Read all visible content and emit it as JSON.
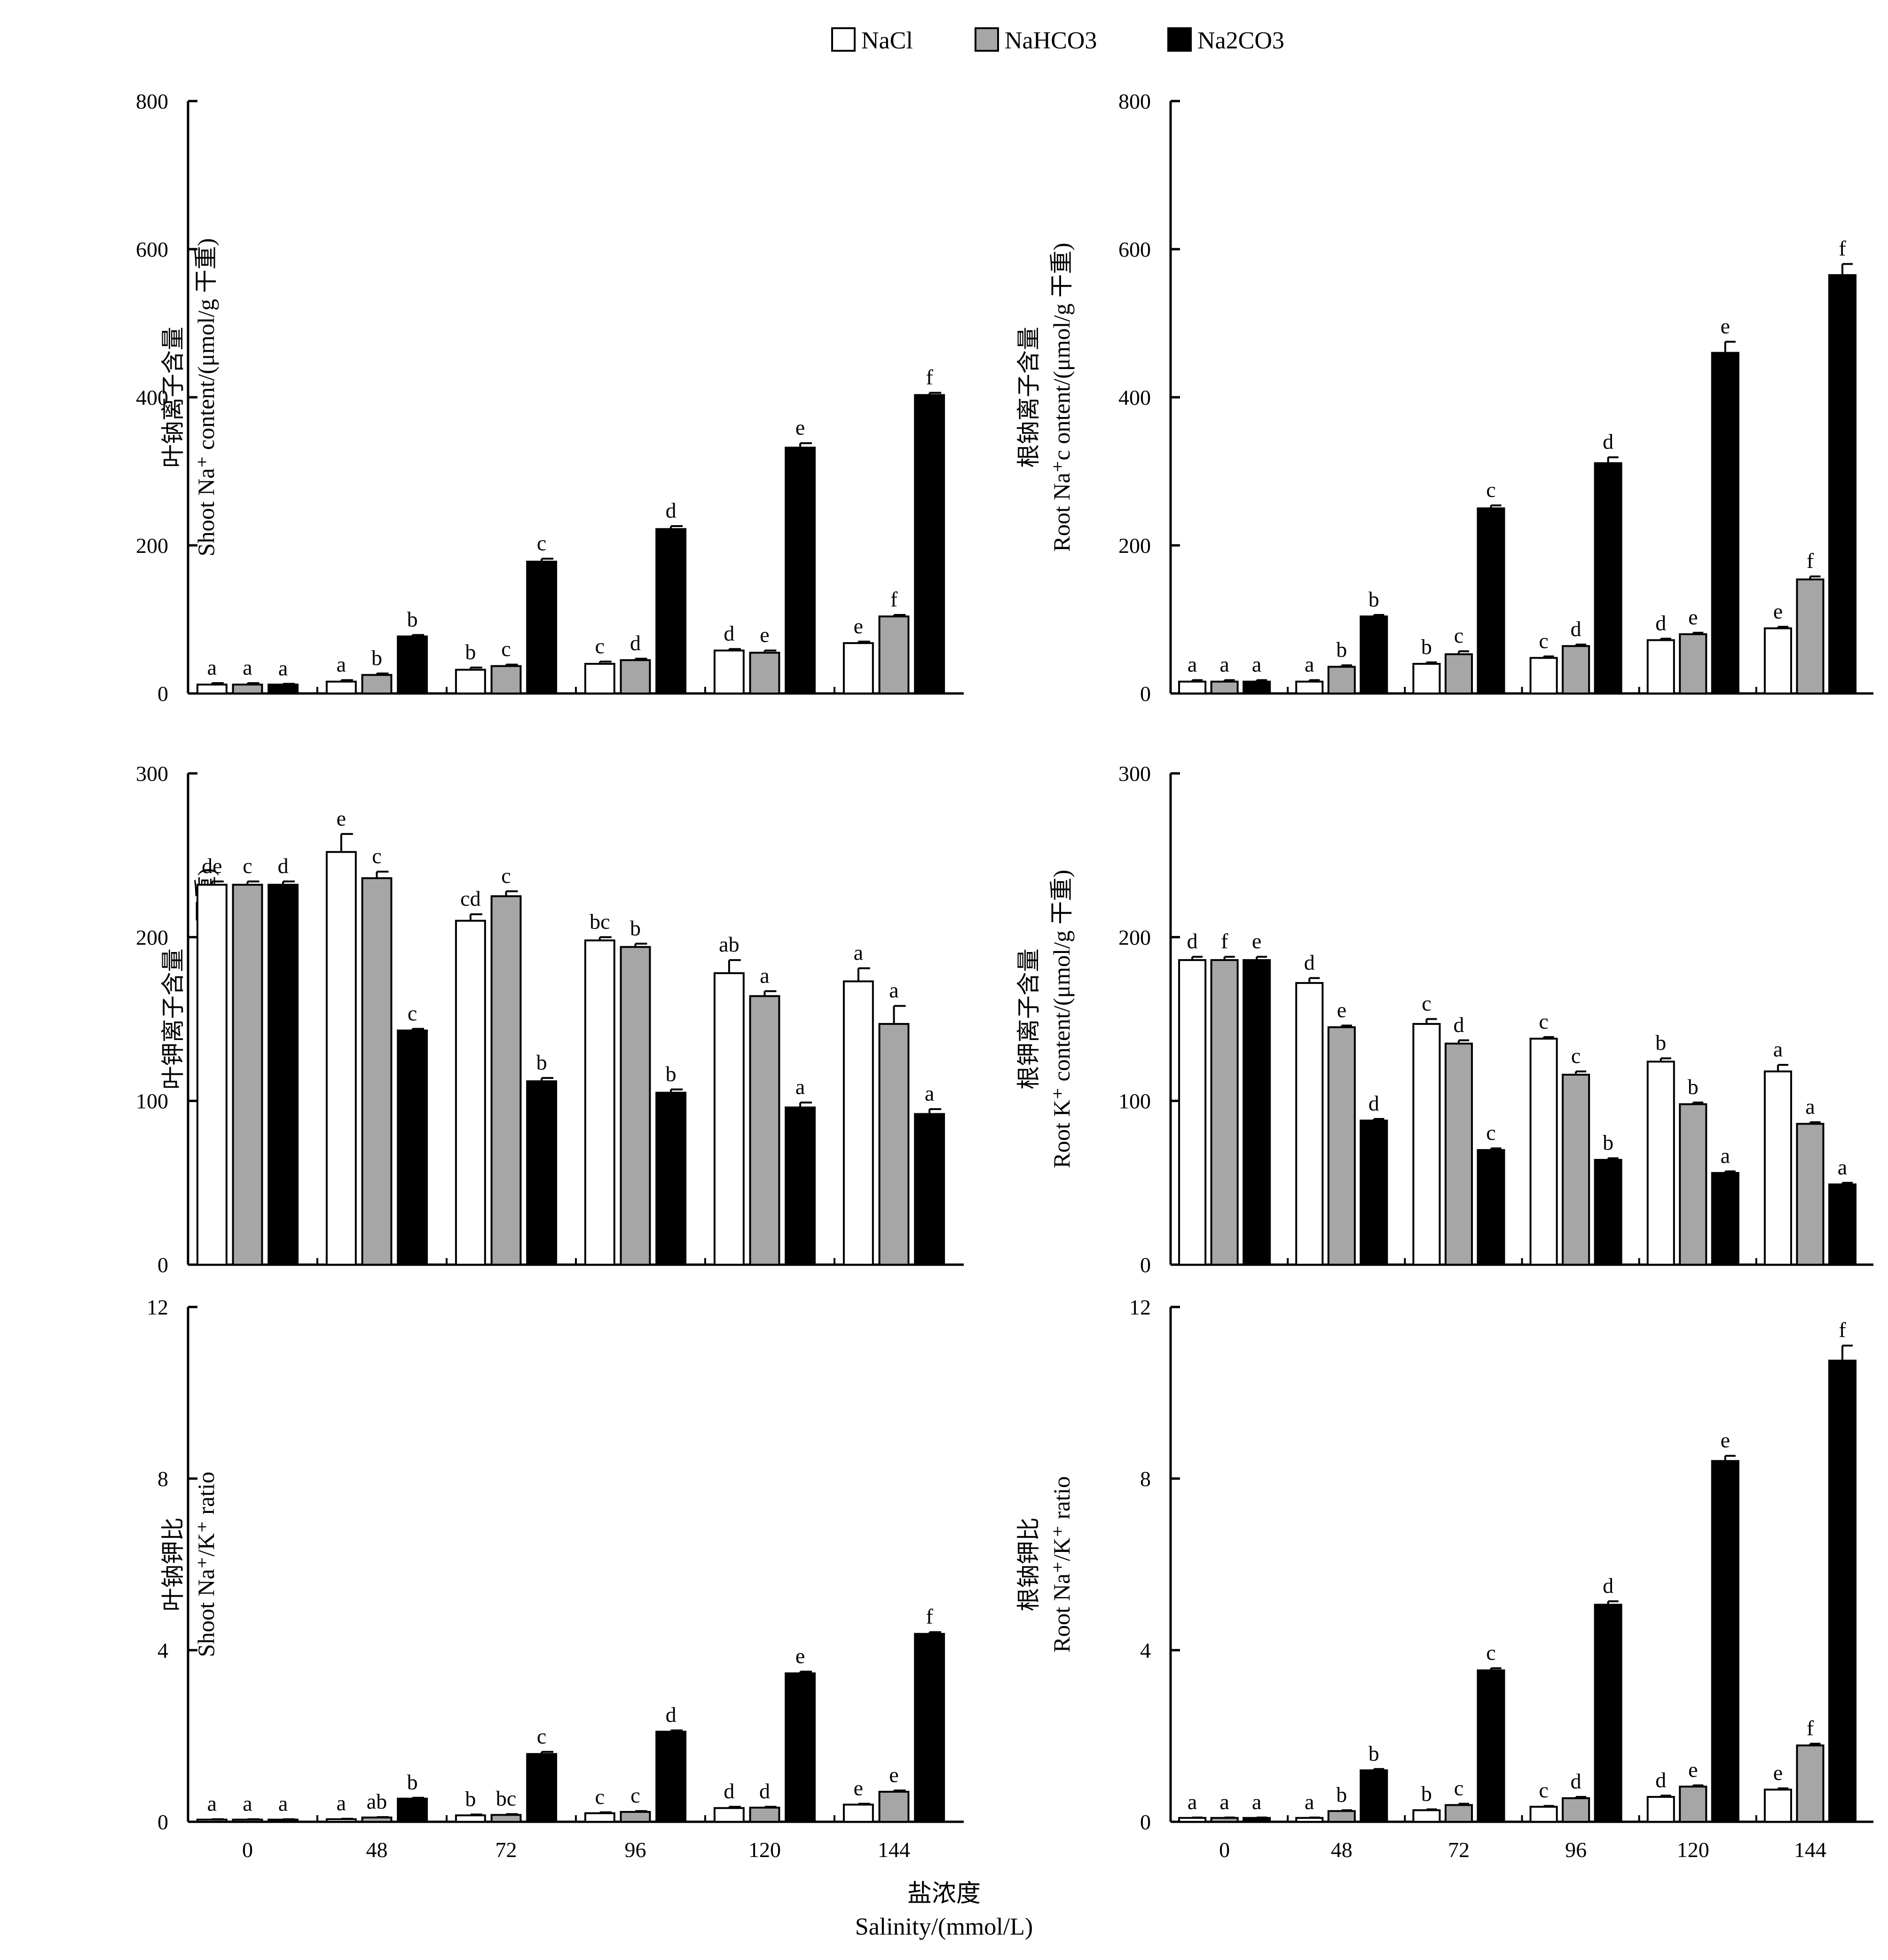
{
  "legend": [
    {
      "name": "NaCl",
      "color": "#ffffff"
    },
    {
      "name": "NaHCO3",
      "color": "#a6a6a6"
    },
    {
      "name": "Na2CO3",
      "color": "#000000"
    }
  ],
  "x_axis_label": {
    "zh": "盐浓度",
    "en": "Salinity/(mmol/L)"
  },
  "chart_data": [
    {
      "type": "bar",
      "categories": [
        "0",
        "48",
        "72",
        "96",
        "120",
        "144"
      ],
      "ylim": [
        0,
        800
      ],
      "yticks": [
        0,
        200,
        400,
        600,
        800
      ],
      "ylabel_zh": "叶钠离子含量",
      "ylabel_en": "Shoot Na⁺ content/(μmol/g 干重)",
      "series": [
        {
          "name": "NaCl",
          "values": [
            12,
            16,
            32,
            40,
            58,
            68
          ],
          "errors": [
            2,
            2,
            3,
            3,
            2,
            2
          ],
          "letters": [
            "a",
            "a",
            "b",
            "c",
            "d",
            "e"
          ]
        },
        {
          "name": "NaHCO3",
          "values": [
            12,
            25,
            37,
            45,
            55,
            104
          ],
          "errors": [
            2,
            2,
            2,
            2,
            3,
            2
          ],
          "letters": [
            "a",
            "b",
            "c",
            "d",
            "e",
            "f"
          ]
        },
        {
          "name": "Na2CO3",
          "values": [
            12,
            77,
            178,
            222,
            332,
            403
          ],
          "errors": [
            1,
            2,
            4,
            4,
            6,
            3
          ],
          "letters": [
            "a",
            "b",
            "c",
            "d",
            "e",
            "f"
          ]
        }
      ]
    },
    {
      "type": "bar",
      "categories": [
        "0",
        "48",
        "72",
        "96",
        "120",
        "144"
      ],
      "ylim": [
        0,
        800
      ],
      "yticks": [
        0,
        200,
        400,
        600,
        800
      ],
      "ylabel_zh": "根钠离子含量",
      "ylabel_en": "Root Na⁺c ontent/(μmol/g 干重)",
      "series": [
        {
          "name": "NaCl",
          "values": [
            16,
            16,
            40,
            48,
            72,
            88
          ],
          "errors": [
            2,
            2,
            2,
            2,
            2,
            2
          ],
          "letters": [
            "a",
            "a",
            "b",
            "c",
            "d",
            "e"
          ]
        },
        {
          "name": "NaHCO3",
          "values": [
            16,
            36,
            53,
            64,
            80,
            154
          ],
          "errors": [
            2,
            2,
            4,
            2,
            2,
            4
          ],
          "letters": [
            "a",
            "b",
            "c",
            "d",
            "e",
            "f"
          ]
        },
        {
          "name": "Na2CO3",
          "values": [
            16,
            104,
            250,
            311,
            460,
            565
          ],
          "errors": [
            2,
            2,
            4,
            8,
            15,
            15
          ],
          "letters": [
            "a",
            "b",
            "c",
            "d",
            "e",
            "f"
          ]
        }
      ]
    },
    {
      "type": "bar",
      "categories": [
        "0",
        "48",
        "72",
        "96",
        "120",
        "144"
      ],
      "ylim": [
        0,
        300
      ],
      "yticks": [
        0,
        100,
        200,
        300
      ],
      "ylabel_zh": "叶钾离子含量",
      "ylabel_en": "Shoot K⁺content/(μmol/g 干重)",
      "series": [
        {
          "name": "NaCl",
          "values": [
            232,
            252,
            210,
            198,
            178,
            173
          ],
          "errors": [
            2,
            11,
            4,
            2,
            8,
            8
          ],
          "letters": [
            "de",
            "e",
            "cd",
            "bc",
            "ab",
            "a"
          ]
        },
        {
          "name": "NaHCO3",
          "values": [
            232,
            236,
            225,
            194,
            164,
            147
          ],
          "errors": [
            2,
            4,
            3,
            2,
            3,
            11
          ],
          "letters": [
            "c",
            "c",
            "c",
            "b",
            "a",
            "a"
          ]
        },
        {
          "name": "Na2CO3",
          "values": [
            232,
            143,
            112,
            105,
            96,
            92
          ],
          "errors": [
            2,
            1,
            2,
            2,
            3,
            3
          ],
          "letters": [
            "d",
            "c",
            "b",
            "b",
            "a",
            "a"
          ]
        }
      ]
    },
    {
      "type": "bar",
      "categories": [
        "0",
        "48",
        "72",
        "96",
        "120",
        "144"
      ],
      "ylim": [
        0,
        300
      ],
      "yticks": [
        0,
        100,
        200,
        300
      ],
      "ylabel_zh": "根钾离子含量",
      "ylabel_en": "Root K⁺ content/(μmol/g 干重)",
      "series": [
        {
          "name": "NaCl",
          "values": [
            186,
            172,
            147,
            138,
            124,
            118
          ],
          "errors": [
            2,
            3,
            3,
            1,
            2,
            4
          ],
          "letters": [
            "d",
            "d",
            "c",
            "c",
            "b",
            "a"
          ]
        },
        {
          "name": "NaHCO3",
          "values": [
            186,
            145,
            135,
            116,
            98,
            86
          ],
          "errors": [
            2,
            1,
            2,
            2,
            1,
            1
          ],
          "letters": [
            "f",
            "e",
            "d",
            "c",
            "b",
            "a"
          ]
        },
        {
          "name": "Na2CO3",
          "values": [
            186,
            88,
            70,
            64,
            56,
            49
          ],
          "errors": [
            2,
            1,
            1,
            1,
            1,
            1
          ],
          "letters": [
            "e",
            "d",
            "c",
            "b",
            "a",
            "a"
          ]
        }
      ]
    },
    {
      "type": "bar",
      "categories": [
        "0",
        "48",
        "72",
        "96",
        "120",
        "144"
      ],
      "ylim": [
        0,
        12
      ],
      "yticks": [
        0,
        4,
        8,
        12
      ],
      "ylabel_zh": "叶钠钾比",
      "ylabel_en": "Shoot Na⁺/K⁺ ratio",
      "series": [
        {
          "name": "NaCl",
          "values": [
            0.05,
            0.06,
            0.15,
            0.2,
            0.32,
            0.4
          ],
          "errors": [
            0.01,
            0.01,
            0.02,
            0.02,
            0.03,
            0.02
          ],
          "letters": [
            "a",
            "a",
            "b",
            "c",
            "d",
            "e"
          ]
        },
        {
          "name": "NaHCO3",
          "values": [
            0.05,
            0.1,
            0.16,
            0.23,
            0.33,
            0.7
          ],
          "errors": [
            0.01,
            0.01,
            0.02,
            0.02,
            0.02,
            0.03
          ],
          "letters": [
            "a",
            "ab",
            "bc",
            "c",
            "d",
            "e"
          ]
        },
        {
          "name": "Na2CO3",
          "values": [
            0.05,
            0.54,
            1.58,
            2.1,
            3.46,
            4.38
          ],
          "errors": [
            0.01,
            0.02,
            0.05,
            0.03,
            0.04,
            0.04
          ],
          "letters": [
            "a",
            "b",
            "c",
            "d",
            "e",
            "f"
          ]
        }
      ]
    },
    {
      "type": "bar",
      "categories": [
        "0",
        "48",
        "72",
        "96",
        "120",
        "144"
      ],
      "ylim": [
        0,
        12
      ],
      "yticks": [
        0,
        4,
        8,
        12
      ],
      "ylabel_zh": "根钠钾比",
      "ylabel_en": "Root Na⁺/K⁺ ratio",
      "series": [
        {
          "name": "NaCl",
          "values": [
            0.09,
            0.09,
            0.27,
            0.35,
            0.58,
            0.75
          ],
          "errors": [
            0.01,
            0.01,
            0.02,
            0.02,
            0.03,
            0.03
          ],
          "letters": [
            "a",
            "a",
            "b",
            "c",
            "d",
            "e"
          ]
        },
        {
          "name": "NaHCO3",
          "values": [
            0.09,
            0.25,
            0.39,
            0.55,
            0.82,
            1.78
          ],
          "errors": [
            0.01,
            0.02,
            0.03,
            0.03,
            0.03,
            0.04
          ],
          "letters": [
            "a",
            "b",
            "c",
            "d",
            "e",
            "f"
          ]
        },
        {
          "name": "Na2CO3",
          "values": [
            0.09,
            1.2,
            3.53,
            5.06,
            8.41,
            10.75
          ],
          "errors": [
            0.01,
            0.03,
            0.05,
            0.08,
            0.12,
            0.35
          ],
          "letters": [
            "a",
            "b",
            "c",
            "d",
            "e",
            "f"
          ]
        }
      ]
    }
  ]
}
